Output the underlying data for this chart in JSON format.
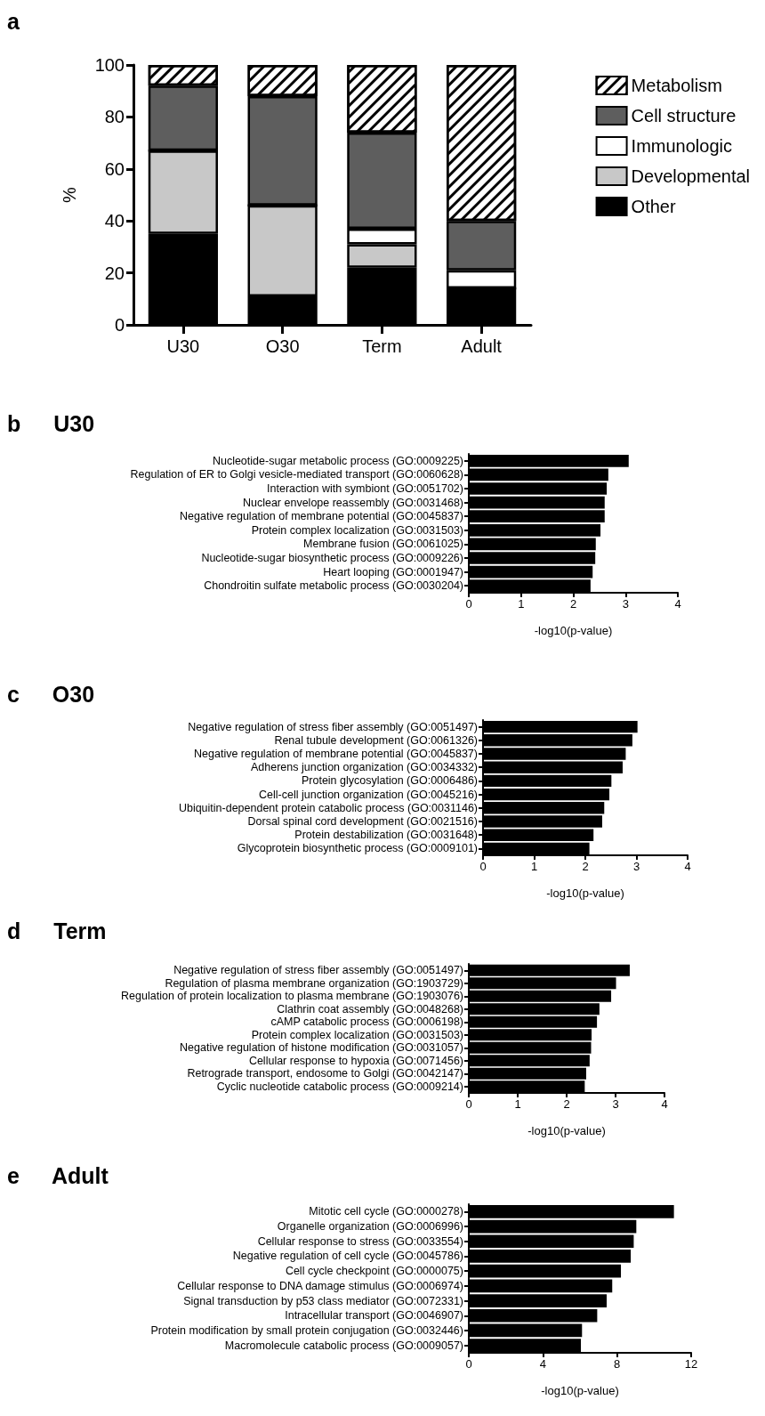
{
  "chart_data": [
    {
      "type": "bar",
      "title": "a",
      "ylabel": "%",
      "categories": [
        "U30",
        "O30",
        "Term",
        "Adult"
      ],
      "stacked": true,
      "legend": "top right",
      "ylim": [
        0,
        100
      ],
      "yticks": [
        0,
        20,
        40,
        60,
        80,
        100
      ],
      "series": [
        {
          "name": "Other",
          "color": "#000000",
          "values": [
            35,
            11,
            22,
            14
          ]
        },
        {
          "name": "Developmental",
          "color": "#c8c8c8",
          "values": [
            32,
            35,
            9,
            0
          ]
        },
        {
          "name": "Immunologic",
          "color": "#ffffff",
          "values": [
            0,
            0,
            6,
            7
          ]
        },
        {
          "name": "Cell structure",
          "color": "#5e5e5e",
          "values": [
            25,
            42,
            37,
            19
          ]
        },
        {
          "name": "Metabolism",
          "color": "#ffffff",
          "values": [
            8,
            12,
            26,
            60
          ]
        }
      ]
    },
    {
      "type": "bar",
      "title": "b U30",
      "orientation": "horizontal",
      "xlabel": "-log10(p-value)",
      "xlim": [
        0,
        4
      ],
      "xticks": [
        0,
        1,
        2,
        3,
        4
      ],
      "color": "#000000",
      "categories": [
        "Nucleotide-sugar metabolic process (GO:0009225)",
        "Regulation of ER to Golgi vesicle-mediated transport (GO:0060628)",
        "Interaction with symbiont (GO:0051702)",
        "Nuclear envelope reassembly (GO:0031468)",
        "Negative regulation of membrane potential (GO:0045837)",
        "Protein complex localization (GO:0031503)",
        "Membrane fusion (GO:0061025)",
        "Nucleotide-sugar biosynthetic process (GO:0009226)",
        "Heart looping (GO:0001947)",
        "Chondroitin sulfate metabolic process (GO:0030204)"
      ],
      "values": [
        3.06,
        2.67,
        2.64,
        2.6,
        2.6,
        2.52,
        2.43,
        2.42,
        2.37,
        2.33
      ]
    },
    {
      "type": "bar",
      "title": "c O30",
      "orientation": "horizontal",
      "xlabel": "-log10(p-value)",
      "xlim": [
        0,
        4
      ],
      "xticks": [
        0,
        1,
        2,
        3,
        4
      ],
      "color": "#000000",
      "categories": [
        "Negative regulation of stress fiber assembly (GO:0051497)",
        "Renal tubule development (GO:0061326)",
        "Negative regulation of membrane potential (GO:0045837)",
        "Adherens junction organization (GO:0034332)",
        "Protein glycosylation (GO:0006486)",
        "Cell-cell junction organization (GO:0045216)",
        "Ubiquitin-dependent protein catabolic process (GO:0031146)",
        "Dorsal spinal cord development (GO:0021516)",
        "Protein destabilization (GO:0031648)",
        "Glycoprotein biosynthetic process (GO:0009101)"
      ],
      "values": [
        3.02,
        2.92,
        2.79,
        2.73,
        2.51,
        2.47,
        2.37,
        2.33,
        2.16,
        2.08
      ]
    },
    {
      "type": "bar",
      "title": "d Term",
      "orientation": "horizontal",
      "xlabel": "-log10(p-value)",
      "xlim": [
        0,
        4
      ],
      "xticks": [
        0,
        1,
        2,
        3,
        4
      ],
      "color": "#000000",
      "categories": [
        "Negative regulation of stress fiber assembly (GO:0051497)",
        "Regulation of plasma membrane organization (GO:1903729)",
        "Regulation of protein localization to plasma membrane (GO:1903076)",
        "Clathrin coat assembly (GO:0048268)",
        "cAMP catabolic process (GO:0006198)",
        "Protein complex localization (GO:0031503)",
        "Negative regulation of histone modification (GO:0031057)",
        "Cellular response to hypoxia (GO:0071456)",
        "Retrograde transport, endosome to Golgi (GO:0042147)",
        "Cyclic nucleotide catabolic process (GO:0009214)"
      ],
      "values": [
        3.29,
        3.01,
        2.91,
        2.67,
        2.62,
        2.51,
        2.5,
        2.47,
        2.4,
        2.37
      ]
    },
    {
      "type": "bar",
      "title": "e Adult",
      "orientation": "horizontal",
      "xlabel": "-log10(p-value)",
      "xlim": [
        0,
        12
      ],
      "xticks": [
        0,
        4,
        8,
        12
      ],
      "color": "#000000",
      "categories": [
        "Mitotic cell cycle (GO:0000278)",
        "Organelle organization (GO:0006996)",
        "Cellular response to stress (GO:0033554)",
        "Negative regulation of cell cycle (GO:0045786)",
        "Cell cycle checkpoint (GO:0000075)",
        "Cellular response to DNA damage stimulus (GO:0006974)",
        "Signal transduction by p53 class mediator (GO:0072331)",
        "Intracellular transport (GO:0046907)",
        "Protein modification by small protein conjugation (GO:0032446)",
        "Macromolecule catabolic process (GO:0009057)"
      ],
      "values": [
        11.07,
        9.04,
        8.9,
        8.74,
        8.21,
        7.74,
        7.44,
        6.93,
        6.11,
        6.05
      ]
    }
  ]
}
